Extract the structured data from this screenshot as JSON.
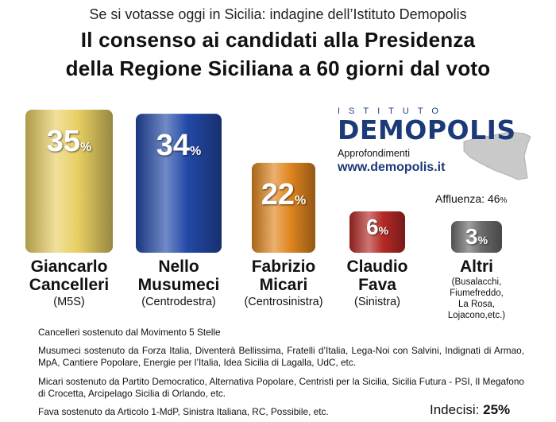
{
  "header": {
    "subtitle": "Se si votasse oggi in Sicilia: indagine dell’Istituto Demopolis",
    "title_line1": "Il consenso ai candidati alla Presidenza",
    "title_line2": "della Regione Siciliana a 60 giorni dal voto"
  },
  "logo": {
    "top": "ISTITUTO",
    "main": "DEMOPOLIS",
    "approfondimenti": "Approfondimenti",
    "url": "www.demopolis.it"
  },
  "affluenza": {
    "label": "Affluenza:",
    "value": "46",
    "unit": "%"
  },
  "indecisi": {
    "label": "Indecisi:",
    "value": "25%"
  },
  "chart_data": {
    "type": "bar",
    "categories": [
      "Giancarlo Cancelleri",
      "Nello Musumeci",
      "Fabrizio Micari",
      "Claudio Fava",
      "Altri"
    ],
    "values": [
      35,
      34,
      22,
      6,
      3
    ],
    "unit": "%",
    "colors": [
      "#e8cf63",
      "#2349a8",
      "#e0861f",
      "#b52a26",
      "#6b6b6b"
    ],
    "candidates": [
      {
        "name_line1": "Giancarlo",
        "name_line2": "Cancelleri",
        "party": "(M5S)"
      },
      {
        "name_line1": "Nello",
        "name_line2": "Musumeci",
        "party": "(Centrodestra)"
      },
      {
        "name_line1": "Fabrizio",
        "name_line2": "Micari",
        "party": "(Centrosinistra)"
      },
      {
        "name_line1": "Claudio",
        "name_line2": "Fava",
        "party": "(Sinistra)"
      },
      {
        "name_line1": "Altri",
        "name_line2": "",
        "party": ""
      }
    ],
    "altri_detail": [
      "(Busalacchi,",
      "Fiumefreddo,",
      "La Rosa,",
      "Lojacono,etc.)"
    ]
  },
  "notes": [
    {
      "name": "Cancelleri",
      "text": " sostenuto dal ",
      "parties": "Movimento 5 Stelle"
    },
    {
      "name": "Musumeci",
      "text": " sostenuto da ",
      "parties": "Forza Italia, Diventerà Bellissima, Fratelli d’Italia, Lega-Noi con Salvini, Indignati di Armao, MpA, Cantiere Popolare, Energie per l’Italia, Idea Sicilia di Lagalla, UdC, etc."
    },
    {
      "name": "Micari",
      "text": " sostenuto da ",
      "parties": "Partito Democratico, Alternativa Popolare, Centristi per la Sicilia, Sicilia Futura - PSI, Il Megafono di Crocetta, Arcipelago Sicilia di Orlando, etc."
    },
    {
      "name": "Fava",
      "text": " sostenuto da ",
      "parties": "Articolo 1-MdP, Sinistra Italiana, RC, Possibile, etc."
    }
  ]
}
